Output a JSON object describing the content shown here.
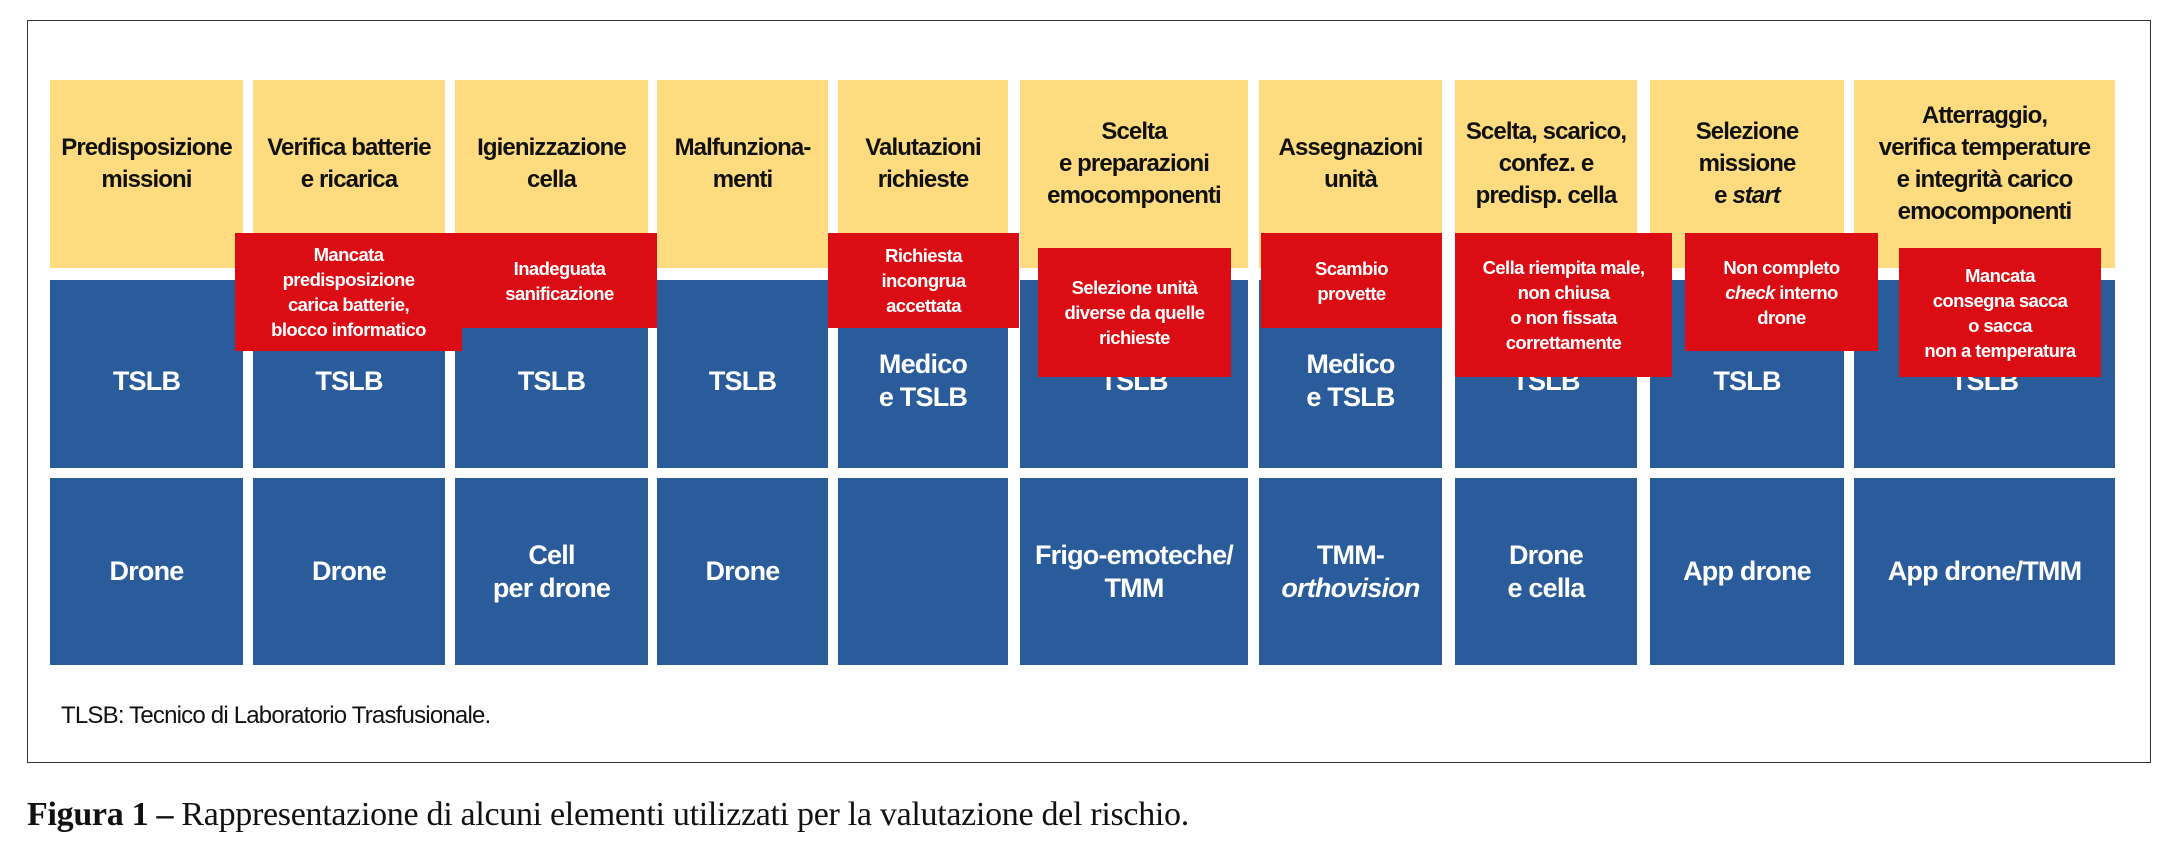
{
  "columns": [
    {
      "header": [
        [
          {
            "t": "Predisposizione"
          }
        ],
        [
          {
            "t": "missioni"
          }
        ]
      ],
      "role": [
        [
          {
            "t": "TSLB"
          }
        ]
      ],
      "tool": [
        [
          {
            "t": "Drone"
          }
        ]
      ]
    },
    {
      "header": [
        [
          {
            "t": "Verifica batterie"
          }
        ],
        [
          {
            "t": "e ricarica"
          }
        ]
      ],
      "risk": [
        [
          {
            "t": "Mancata"
          }
        ],
        [
          {
            "t": "predisposizione"
          }
        ],
        [
          {
            "t": "carica batterie,"
          }
        ],
        [
          {
            "t": "blocco informatico"
          }
        ]
      ],
      "role": [
        [
          {
            "t": "TSLB"
          }
        ]
      ],
      "tool": [
        [
          {
            "t": "Drone"
          }
        ]
      ]
    },
    {
      "header": [
        [
          {
            "t": "Igienizzazione"
          }
        ],
        [
          {
            "t": "cella"
          }
        ]
      ],
      "risk": [
        [
          {
            "t": "Inadeguata"
          }
        ],
        [
          {
            "t": "sanificazione"
          }
        ]
      ],
      "role": [
        [
          {
            "t": "TSLB"
          }
        ]
      ],
      "tool": [
        [
          {
            "t": "Cell"
          }
        ],
        [
          {
            "t": "per drone"
          }
        ]
      ]
    },
    {
      "header": [
        [
          {
            "t": "Malfunziona-"
          }
        ],
        [
          {
            "t": "menti"
          }
        ]
      ],
      "role": [
        [
          {
            "t": "TSLB"
          }
        ]
      ],
      "tool": [
        [
          {
            "t": "Drone"
          }
        ]
      ]
    },
    {
      "header": [
        [
          {
            "t": "Valutazioni"
          }
        ],
        [
          {
            "t": "richieste"
          }
        ]
      ],
      "risk": [
        [
          {
            "t": "Richiesta"
          }
        ],
        [
          {
            "t": "incongrua"
          }
        ],
        [
          {
            "t": "accettata"
          }
        ]
      ],
      "role": [
        [
          {
            "t": "Medico"
          }
        ],
        [
          {
            "t": "e TSLB"
          }
        ]
      ],
      "tool": []
    },
    {
      "header": [
        [
          {
            "t": "Scelta"
          }
        ],
        [
          {
            "t": "e preparazioni"
          }
        ],
        [
          {
            "t": "emocomponenti"
          }
        ]
      ],
      "risk": [
        [
          {
            "t": "Selezione unità"
          }
        ],
        [
          {
            "t": "diverse da quelle"
          }
        ],
        [
          {
            "t": "richieste"
          }
        ]
      ],
      "role": [
        [
          {
            "t": "TSLB"
          }
        ]
      ],
      "tool": [
        [
          {
            "t": "Frigo-emoteche/"
          }
        ],
        [
          {
            "t": "TMM"
          }
        ]
      ]
    },
    {
      "header": [
        [
          {
            "t": "Assegnazioni"
          }
        ],
        [
          {
            "t": "unità"
          }
        ]
      ],
      "risk": [
        [
          {
            "t": "Scambio"
          }
        ],
        [
          {
            "t": "provette"
          }
        ]
      ],
      "role": [
        [
          {
            "t": "Medico"
          }
        ],
        [
          {
            "t": "e TSLB"
          }
        ]
      ],
      "tool": [
        [
          {
            "t": "TMM-"
          }
        ],
        [
          {
            "t": "orthovision",
            "i": true
          }
        ]
      ]
    },
    {
      "header": [
        [
          {
            "t": "Scelta, scarico,"
          }
        ],
        [
          {
            "t": "confez. e"
          }
        ],
        [
          {
            "t": "predisp. cella"
          }
        ]
      ],
      "risk": [
        [
          {
            "t": "Cella riempita male,"
          }
        ],
        [
          {
            "t": "non chiusa"
          }
        ],
        [
          {
            "t": "o non fissata"
          }
        ],
        [
          {
            "t": "correttamente"
          }
        ]
      ],
      "role": [
        [
          {
            "t": "TSLB"
          }
        ]
      ],
      "tool": [
        [
          {
            "t": "Drone"
          }
        ],
        [
          {
            "t": "e cella"
          }
        ]
      ]
    },
    {
      "header": [
        [
          {
            "t": "Selezione"
          }
        ],
        [
          {
            "t": "missione"
          }
        ],
        [
          {
            "t": "e "
          },
          {
            "t": "start",
            "i": true
          }
        ]
      ],
      "risk": [
        [
          {
            "t": "Non completo"
          }
        ],
        [
          {
            "t": "check",
            "i": true
          },
          {
            "t": " interno"
          }
        ],
        [
          {
            "t": "drone"
          }
        ]
      ],
      "role": [
        [
          {
            "t": "TSLB"
          }
        ]
      ],
      "tool": [
        [
          {
            "t": "App drone"
          }
        ]
      ]
    },
    {
      "header": [
        [
          {
            "t": "Atterraggio,"
          }
        ],
        [
          {
            "t": "verifica temperature"
          }
        ],
        [
          {
            "t": "e integrità carico"
          }
        ],
        [
          {
            "t": "emocomponenti"
          }
        ]
      ],
      "risk": [
        [
          {
            "t": "Mancata"
          }
        ],
        [
          {
            "t": "consegna sacca"
          }
        ],
        [
          {
            "t": "o sacca"
          }
        ],
        [
          {
            "t": "non a temperatura"
          }
        ]
      ],
      "role": [
        [
          {
            "t": "TSLB"
          }
        ]
      ],
      "tool": [
        [
          {
            "t": "App drone/TMM"
          }
        ]
      ]
    }
  ],
  "footnote": "TLSB: Tecnico di Laboratorio Trasfusionale.",
  "caption": {
    "label": "Figura 1 –",
    "text": " Rappresentazione di alcuni elementi utilizzati per la valutazione del rischio."
  },
  "colors": {
    "header": "#FDDB7E",
    "blue": "#2A5B9A",
    "risk": "#DC0C15"
  }
}
